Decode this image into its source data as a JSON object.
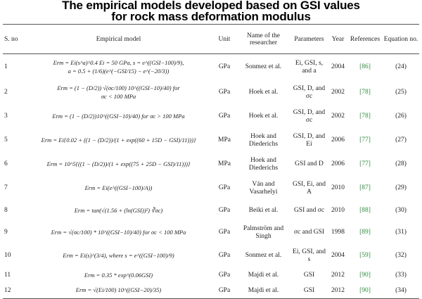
{
  "title": {
    "line1": "The empirical models developed based on GSI values",
    "line2": "for rock mass deformation modulus"
  },
  "headers": {
    "no": "S. no",
    "model": "Empirical model",
    "unit": "Unit",
    "researcher": "Name of the researcher",
    "parameters": "Parameters",
    "year": "Year",
    "references": "References",
    "equation": "Equation no."
  },
  "rows": [
    {
      "no": "1",
      "model_l1": "Erm = Ei(s^a)^0.4 Ei = 50 GPa, s = e^((GSI−100)/9),",
      "model_l2": "a = 0.5 + (1/6)(e^(−GSI/15) − e^(−20/3))",
      "unit": "GPa",
      "researcher_l1": "Sonmez et al.",
      "researcher_l2": "",
      "params_l1": "Ei, GSI, s,",
      "params_l2": "and a",
      "year": "2004",
      "ref": "[86]",
      "eq": "(24)"
    },
    {
      "no": "2",
      "model_l1": "Erm = (1 − (D/2)) √(σc/100) 10^((GSI−10)/40) for",
      "model_l2": "σc < 100 MPa",
      "unit": "GPa",
      "researcher_l1": "Hoek et al.",
      "researcher_l2": "",
      "params_l1": "GSI, D, and",
      "params_l2": "σc",
      "year": "2002",
      "ref": "[78]",
      "eq": "(25)"
    },
    {
      "no": "3",
      "model_l1": "Erm = (1 − (D/2))10^((GSI−10)/40) for σc > 100 MPa",
      "model_l2": "",
      "unit": "GPa",
      "researcher_l1": "Hoek et al.",
      "researcher_l2": "",
      "params_l1": "GSI, D, and",
      "params_l2": "σc",
      "year": "2002",
      "ref": "[78]",
      "eq": "(26)"
    },
    {
      "no": "5",
      "model_l1": "Erm = Ei{0.02 + ((1 − (D/2))/(1 + exp((60 + 15D − GSI)/11)))}",
      "model_l2": "",
      "unit": "MPa",
      "researcher_l1": "Hoek and",
      "researcher_l2": "Diederichs",
      "params_l1": "GSI, D, and",
      "params_l2": "Ei",
      "year": "2006",
      "ref": "[77]",
      "eq": "(27)"
    },
    {
      "no": "6",
      "model_l1": "Erm = 10^5{((1 − (D/2))/(1 + exp((75 + 25D − GSI)/11)))}",
      "model_l2": "",
      "unit": "MPa",
      "researcher_l1": "Hoek and",
      "researcher_l2": "Diederichs",
      "params_l1": "GSI and D",
      "params_l2": "",
      "year": "2006",
      "ref": "[77]",
      "eq": "(28)"
    },
    {
      "no": "7",
      "model_l1": "Erm = Ei(e^((GSI−100)/A))",
      "model_l2": "",
      "unit": "GPa",
      "researcher_l1": "Ván and",
      "researcher_l2": "Vasarhelyi",
      "params_l1": "GSI, Ei, and",
      "params_l2": "A",
      "year": "2010",
      "ref": "[87]",
      "eq": "(29)"
    },
    {
      "no": "8",
      "model_l1": "Erm = tan(√(1.56 + (ln(GSI))²) ∛σc)",
      "model_l2": "",
      "unit": "GPa",
      "researcher_l1": "Beiki et al.",
      "researcher_l2": "",
      "params_l1": "GSI and σc",
      "params_l2": "",
      "year": "2010",
      "ref": "[88]",
      "eq": "(30)"
    },
    {
      "no": "9",
      "model_l1": "Erm = √(σc/100) * 10^((GSI−10)/40) for σc < 100 MPa",
      "model_l2": "",
      "unit": "GPa",
      "researcher_l1": "Palmström and",
      "researcher_l2": "Singh",
      "params_l1": "σc and GSI",
      "params_l2": "",
      "year": "1998",
      "ref": "[89]",
      "eq": "(31)"
    },
    {
      "no": "10",
      "model_l1": "Erm = Ei(s)^(3/4), where s = e^((GSI−100)/9)",
      "model_l2": "",
      "unit": "GPa",
      "researcher_l1": "Sonmez et al.",
      "researcher_l2": "",
      "params_l1": "Ei, GSI, and",
      "params_l2": "s",
      "year": "2004",
      "ref": "[59]",
      "eq": "(32)"
    },
    {
      "no": "11",
      "model_l1": "Erm = 0.35 * exp^(0.06GSI)",
      "model_l2": "",
      "unit": "GPa",
      "researcher_l1": "Majdi et al.",
      "researcher_l2": "",
      "params_l1": "GSI",
      "params_l2": "",
      "year": "2012",
      "ref": "[90]",
      "eq": "(33)"
    },
    {
      "no": "12",
      "model_l1": "Erm = √(Ei/100) 10^((GSI−20)/35)",
      "model_l2": "",
      "unit": "GPa",
      "researcher_l1": "Majdi et al.",
      "researcher_l2": "",
      "params_l1": "GSI",
      "params_l2": "",
      "year": "2012",
      "ref": "[90]",
      "eq": "(34)"
    }
  ]
}
